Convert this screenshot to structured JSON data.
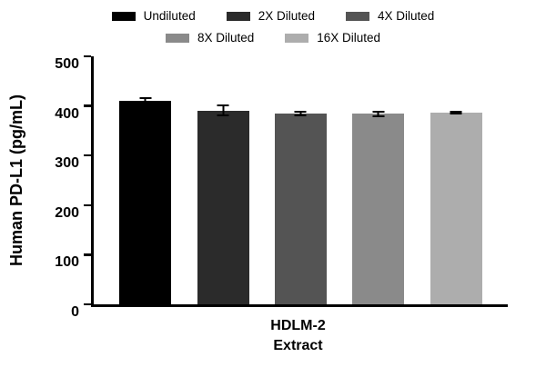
{
  "chart_data": {
    "type": "bar",
    "title": "",
    "categories": [
      "HDLM-2 Extract"
    ],
    "series": [
      {
        "name": "Undiluted",
        "color": "#000000",
        "value": 410,
        "error": 8
      },
      {
        "name": "2X Diluted",
        "color": "#2b2b2b",
        "value": 391,
        "error": 12
      },
      {
        "name": "4X Diluted",
        "color": "#545454",
        "value": 385,
        "error": 6
      },
      {
        "name": "8X Diluted",
        "color": "#8a8a8a",
        "value": 384,
        "error": 6
      },
      {
        "name": "16X Diluted",
        "color": "#adadad",
        "value": 386,
        "error": 4
      }
    ],
    "ylabel": "Human PD-L1 (pg/mL)",
    "xlabel": "HDLM-2\nExtract",
    "ylim": [
      0,
      500
    ],
    "yticks": [
      0,
      100,
      200,
      300,
      400,
      500
    ],
    "legend_position": "top",
    "legend_rows": [
      [
        0,
        1,
        2
      ],
      [
        3,
        4
      ]
    ],
    "grid": false,
    "axis_color": "#000000"
  }
}
